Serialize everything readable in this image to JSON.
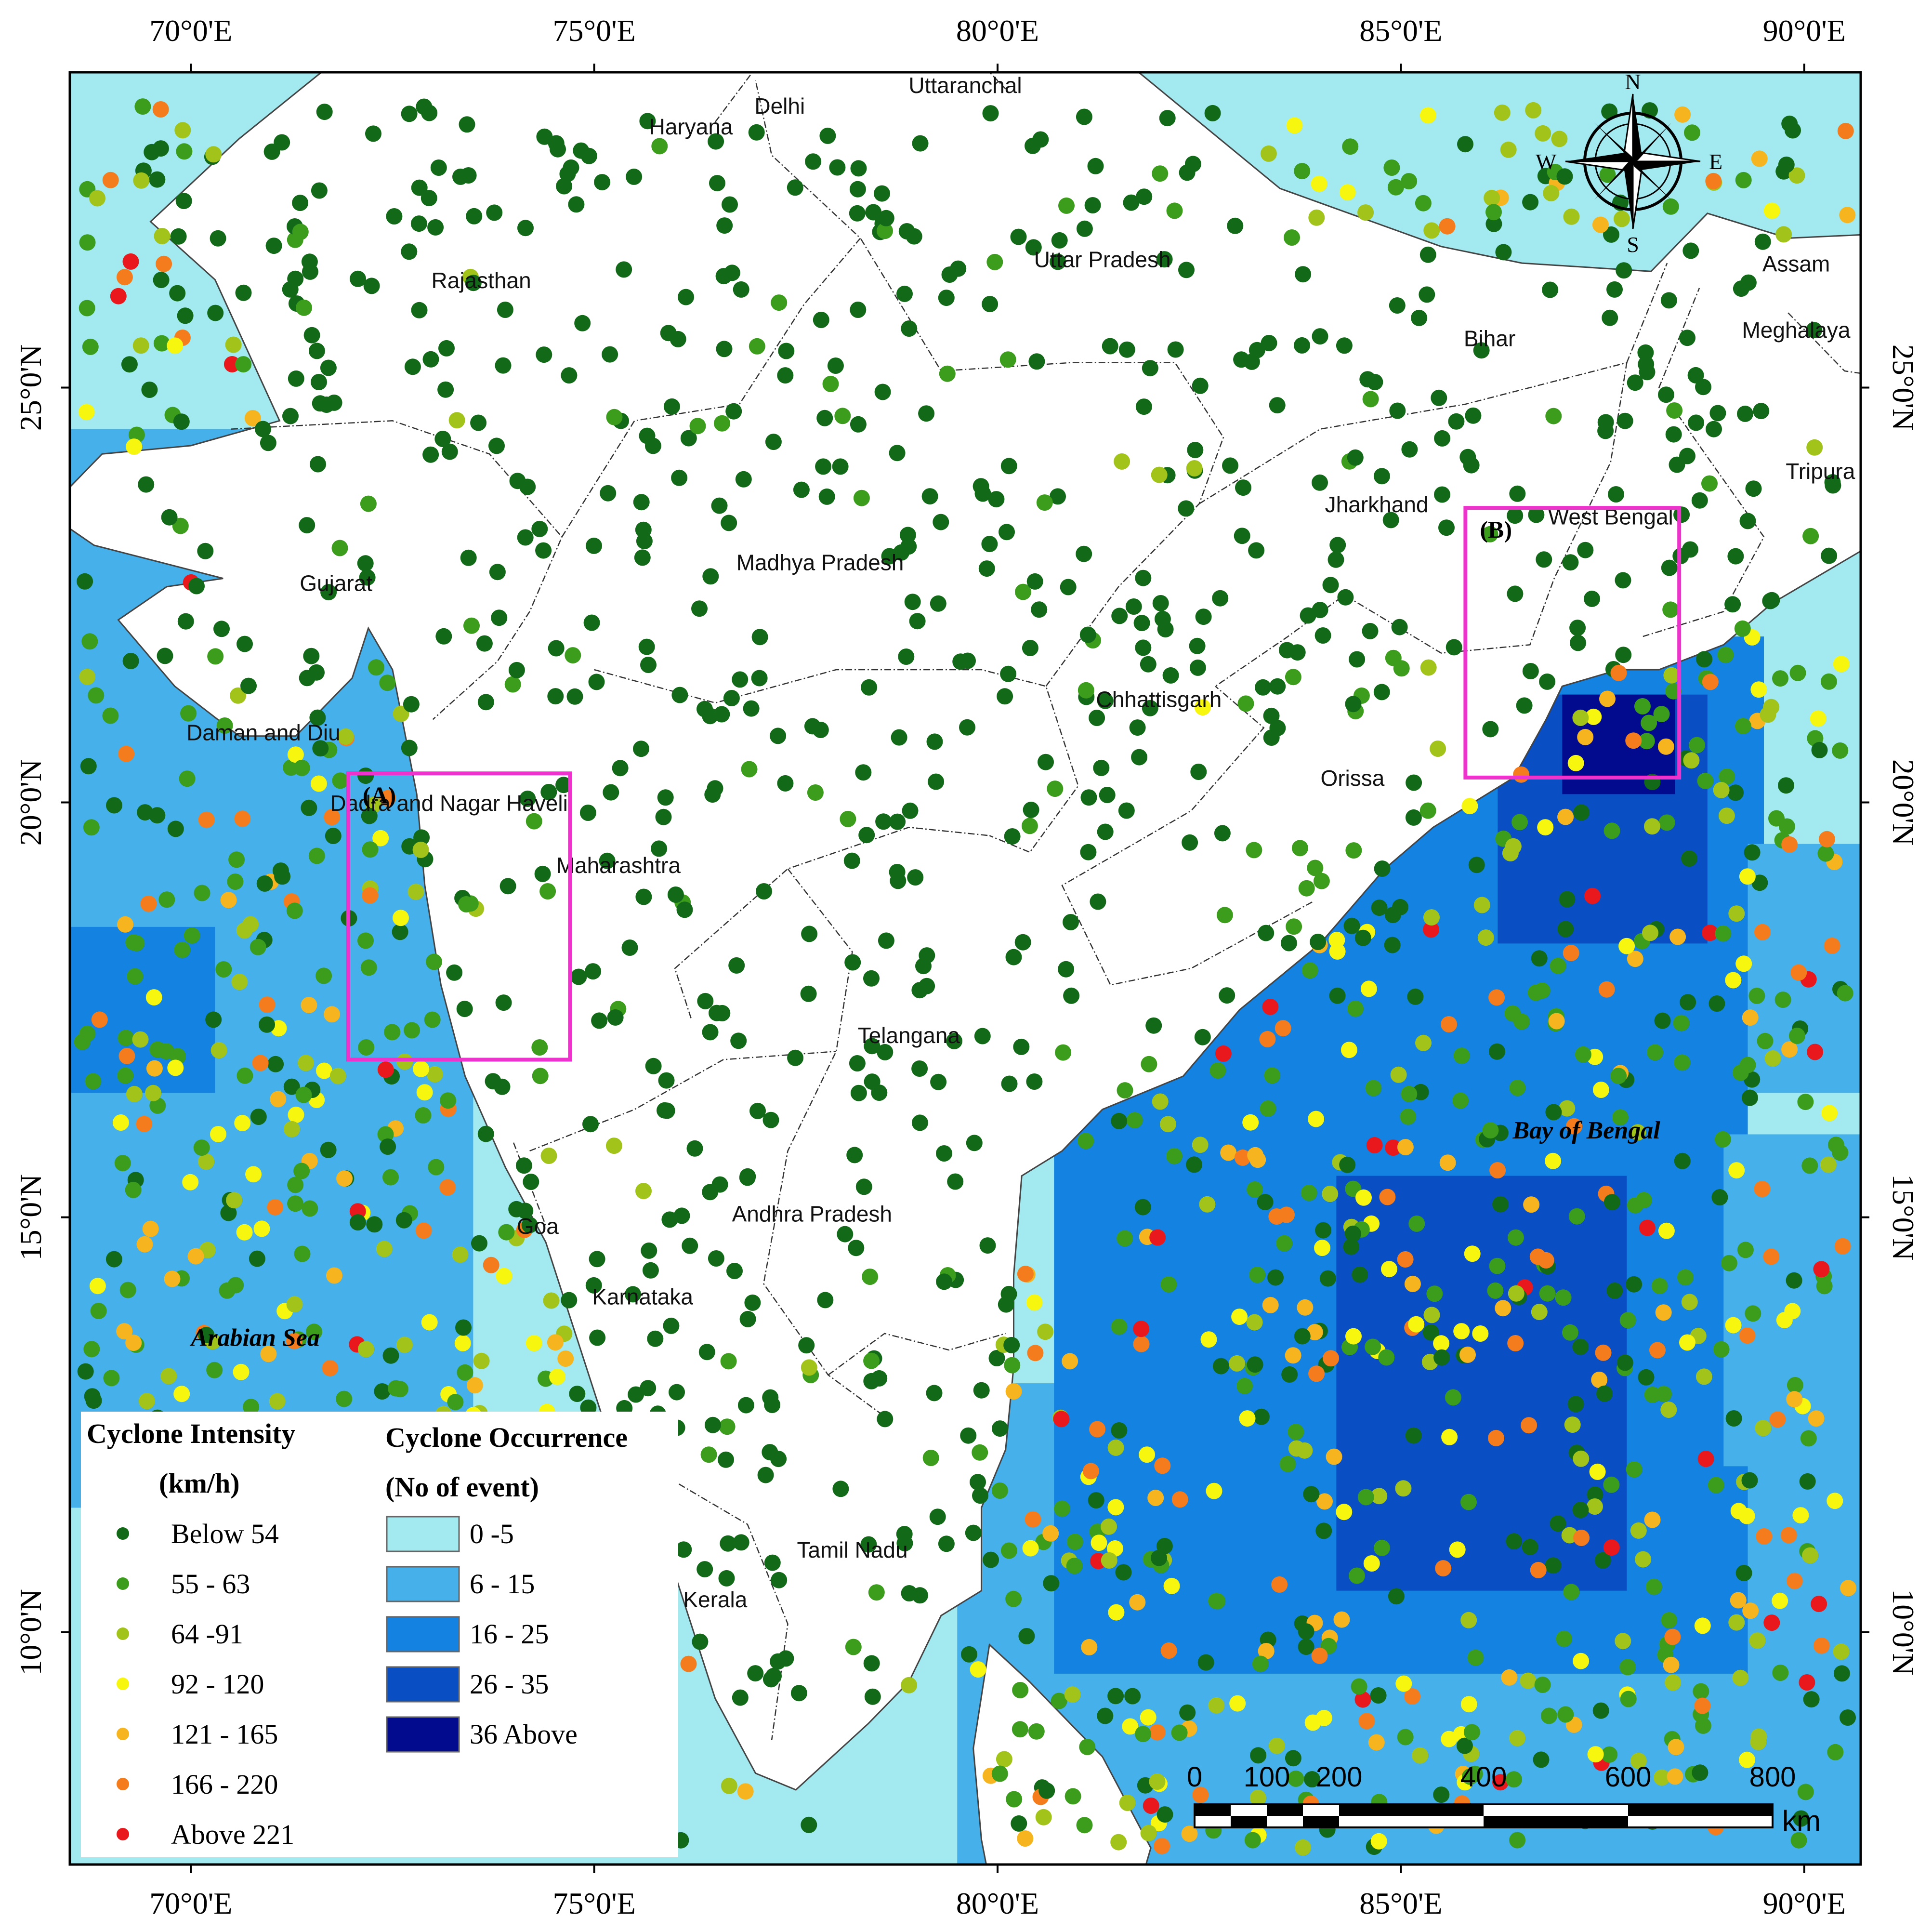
{
  "map": {
    "lon_min": 68.5,
    "lon_max": 90.7,
    "lat_min": 7.2,
    "lat_max": 28.8,
    "lon_ticks": [
      70,
      75,
      80,
      85,
      90
    ],
    "lat_ticks": [
      10,
      15,
      20,
      25
    ],
    "lon_labels": [
      "70°0'E",
      "75°0'E",
      "80°0'E",
      "85°0'E",
      "90°0'E"
    ],
    "lat_labels": [
      "10°0'N",
      "15°0'N",
      "20°0'N",
      "25°0'N"
    ]
  },
  "place_labels": [
    {
      "text": "Uttaranchal",
      "lon": 79.6,
      "lat": 28.55,
      "italic": false,
      "bold": false
    },
    {
      "text": "Delhi",
      "lon": 77.3,
      "lat": 28.3,
      "italic": false,
      "bold": false
    },
    {
      "text": "Haryana",
      "lon": 76.2,
      "lat": 28.05,
      "italic": false,
      "bold": false
    },
    {
      "text": "Rajasthan",
      "lon": 73.6,
      "lat": 26.2,
      "italic": false,
      "bold": false
    },
    {
      "text": "Uttar Pradesh",
      "lon": 81.3,
      "lat": 26.45,
      "italic": false,
      "bold": false
    },
    {
      "text": "Bihar",
      "lon": 86.1,
      "lat": 25.5,
      "italic": false,
      "bold": false
    },
    {
      "text": "Assam",
      "lon": 89.9,
      "lat": 26.4,
      "italic": false,
      "bold": false
    },
    {
      "text": "Meghalaya",
      "lon": 89.9,
      "lat": 25.6,
      "italic": false,
      "bold": false
    },
    {
      "text": "Tripura",
      "lon": 90.2,
      "lat": 23.9,
      "italic": false,
      "bold": false
    },
    {
      "text": "Jharkhand",
      "lon": 84.7,
      "lat": 23.5,
      "italic": false,
      "bold": false
    },
    {
      "text": "West Bengal",
      "lon": 87.6,
      "lat": 23.35,
      "italic": false,
      "bold": false
    },
    {
      "text": "Gujarat",
      "lon": 71.8,
      "lat": 22.55,
      "italic": false,
      "bold": false
    },
    {
      "text": "Madhya Pradesh",
      "lon": 77.8,
      "lat": 22.8,
      "italic": false,
      "bold": false
    },
    {
      "text": "Chhattisgarh",
      "lon": 82.0,
      "lat": 21.15,
      "italic": false,
      "bold": false
    },
    {
      "text": "Daman and Diu",
      "lon": 70.9,
      "lat": 20.75,
      "italic": false,
      "bold": false
    },
    {
      "text": "Dadra and Nagar Haveli",
      "lon": 73.2,
      "lat": 19.9,
      "italic": false,
      "bold": false
    },
    {
      "text": "Orissa",
      "lon": 84.4,
      "lat": 20.2,
      "italic": false,
      "bold": false
    },
    {
      "text": "Maharashtra",
      "lon": 75.3,
      "lat": 19.15,
      "italic": false,
      "bold": false
    },
    {
      "text": "Telangana",
      "lon": 78.9,
      "lat": 17.1,
      "italic": false,
      "bold": false
    },
    {
      "text": "Bay of Bengal",
      "lon": 87.3,
      "lat": 15.95,
      "italic": true,
      "bold": true
    },
    {
      "text": "Andhra Pradesh",
      "lon": 77.7,
      "lat": 14.95,
      "italic": false,
      "bold": false
    },
    {
      "text": "Goa",
      "lon": 74.3,
      "lat": 14.8,
      "italic": false,
      "bold": false
    },
    {
      "text": "Karnataka",
      "lon": 75.6,
      "lat": 13.95,
      "italic": false,
      "bold": false
    },
    {
      "text": "Arabian Sea",
      "lon": 70.8,
      "lat": 13.45,
      "italic": true,
      "bold": true
    },
    {
      "text": "Tamil Nadu",
      "lon": 78.2,
      "lat": 10.9,
      "italic": false,
      "bold": false
    },
    {
      "text": "Kerala",
      "lon": 76.5,
      "lat": 10.3,
      "italic": false,
      "bold": false
    }
  ],
  "inset_boxes": [
    {
      "label": "(A)",
      "lon_min": 71.95,
      "lon_max": 74.7,
      "lat_min": 16.9,
      "lat_max": 20.35,
      "color": "#ee33cc"
    },
    {
      "label": "(B)",
      "lon_min": 85.8,
      "lon_max": 88.45,
      "lat_min": 20.3,
      "lat_max": 23.55,
      "color": "#ee33cc"
    }
  ],
  "compass": {
    "n": "N",
    "s": "S",
    "e": "E",
    "w": "W"
  },
  "scalebar": {
    "ticks": [
      "0",
      "100",
      "200",
      "400",
      "600",
      "800"
    ],
    "unit": "km"
  },
  "legend": {
    "intensity_title_1": "Cyclone Intensity",
    "intensity_title_2": "(km/h)",
    "intensity_classes": [
      {
        "label": "Below 54",
        "color": "#126a18"
      },
      {
        "label": "55 - 63",
        "color": "#3c9c1c"
      },
      {
        "label": "64 -91",
        "color": "#a2c41a"
      },
      {
        "label": "92 - 120",
        "color": "#f6f60e"
      },
      {
        "label": "121 - 165",
        "color": "#f6b41e"
      },
      {
        "label": "166 -  220",
        "color": "#f47c1c"
      },
      {
        "label": "Above 221",
        "color": "#e8181c"
      }
    ],
    "occurrence_title_1": "Cyclone Occurrence",
    "occurrence_title_2": "(No of event)",
    "occurrence_classes": [
      {
        "label": "0 -5",
        "color": "#a2eaf0"
      },
      {
        "label": "6 - 15",
        "color": "#46b0ea"
      },
      {
        "label": "16 - 25",
        "color": "#1482e0"
      },
      {
        "label": "26 - 35",
        "color": "#0a4ec4"
      },
      {
        "label": "36 Above",
        "color": "#020a8e"
      }
    ]
  },
  "colors": {
    "land": "#ffffff",
    "boundary": "#333333",
    "frame": "#000000"
  }
}
